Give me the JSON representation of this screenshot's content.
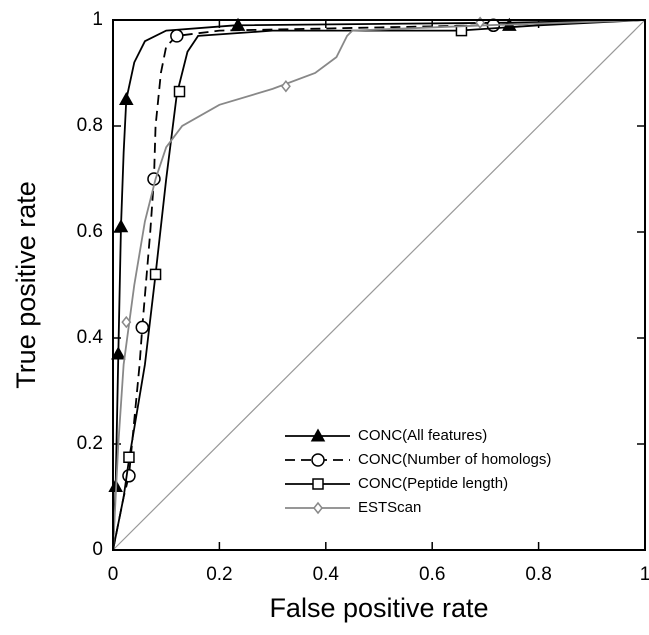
{
  "chart_data": {
    "type": "line",
    "xlabel": "False positive rate",
    "ylabel": "True positive rate",
    "xlim": [
      0,
      1
    ],
    "ylim": [
      0,
      1
    ],
    "xticks": [
      0,
      0.2,
      0.4,
      0.6,
      0.8,
      1
    ],
    "yticks": [
      0,
      0.2,
      0.4,
      0.6,
      0.8,
      1
    ],
    "legend": "lower right",
    "series": [
      {
        "name": "CONC(All features)",
        "color": "#000000",
        "line_style": "solid",
        "marker": "triangle",
        "x": [
          0,
          0.005,
          0.01,
          0.015,
          0.02,
          0.025,
          0.04,
          0.06,
          0.1,
          0.23,
          0.75,
          1
        ],
        "values": [
          0,
          0.12,
          0.37,
          0.61,
          0.75,
          0.85,
          0.92,
          0.96,
          0.98,
          0.99,
          0.995,
          1
        ],
        "markers": {
          "x": [
            0.005,
            0.01,
            0.015,
            0.025,
            0.235,
            0.745
          ],
          "values": [
            0.12,
            0.37,
            0.61,
            0.85,
            0.99,
            0.99
          ]
        }
      },
      {
        "name": "CONC(Number of homologs)",
        "color": "#000000",
        "line_style": "dashed",
        "marker": "circle",
        "x": [
          0,
          0.02,
          0.03,
          0.05,
          0.055,
          0.07,
          0.077,
          0.08,
          0.09,
          0.1,
          0.12,
          0.2,
          0.7,
          1
        ],
        "values": [
          0,
          0.1,
          0.14,
          0.35,
          0.42,
          0.6,
          0.7,
          0.8,
          0.9,
          0.95,
          0.97,
          0.98,
          0.99,
          1
        ],
        "markers": {
          "x": [
            0.03,
            0.055,
            0.077,
            0.12,
            0.715
          ],
          "values": [
            0.14,
            0.42,
            0.7,
            0.97,
            0.99
          ]
        }
      },
      {
        "name": "CONC(Peptide length)",
        "color": "#000000",
        "line_style": "solid",
        "marker": "square",
        "x": [
          0,
          0.02,
          0.03,
          0.06,
          0.08,
          0.1,
          0.12,
          0.14,
          0.16,
          0.3,
          0.65,
          0.8,
          1
        ],
        "values": [
          0,
          0.1,
          0.17,
          0.35,
          0.52,
          0.7,
          0.86,
          0.94,
          0.97,
          0.98,
          0.98,
          0.99,
          1
        ],
        "markers": {
          "x": [
            0.03,
            0.08,
            0.125,
            0.655
          ],
          "values": [
            0.175,
            0.52,
            0.865,
            0.98
          ]
        }
      },
      {
        "name": "ESTScan",
        "color": "#888888",
        "line_style": "solid",
        "marker": "diamond",
        "x": [
          0,
          0.01,
          0.02,
          0.04,
          0.06,
          0.08,
          0.1,
          0.13,
          0.2,
          0.3,
          0.38,
          0.42,
          0.44,
          0.45,
          0.7,
          1
        ],
        "values": [
          0,
          0.2,
          0.35,
          0.5,
          0.62,
          0.7,
          0.76,
          0.8,
          0.84,
          0.87,
          0.9,
          0.93,
          0.97,
          0.98,
          0.99,
          1
        ],
        "markers": {
          "x": [
            0.025,
            0.325,
            0.69
          ],
          "values": [
            0.43,
            0.875,
            0.995
          ]
        }
      }
    ]
  }
}
